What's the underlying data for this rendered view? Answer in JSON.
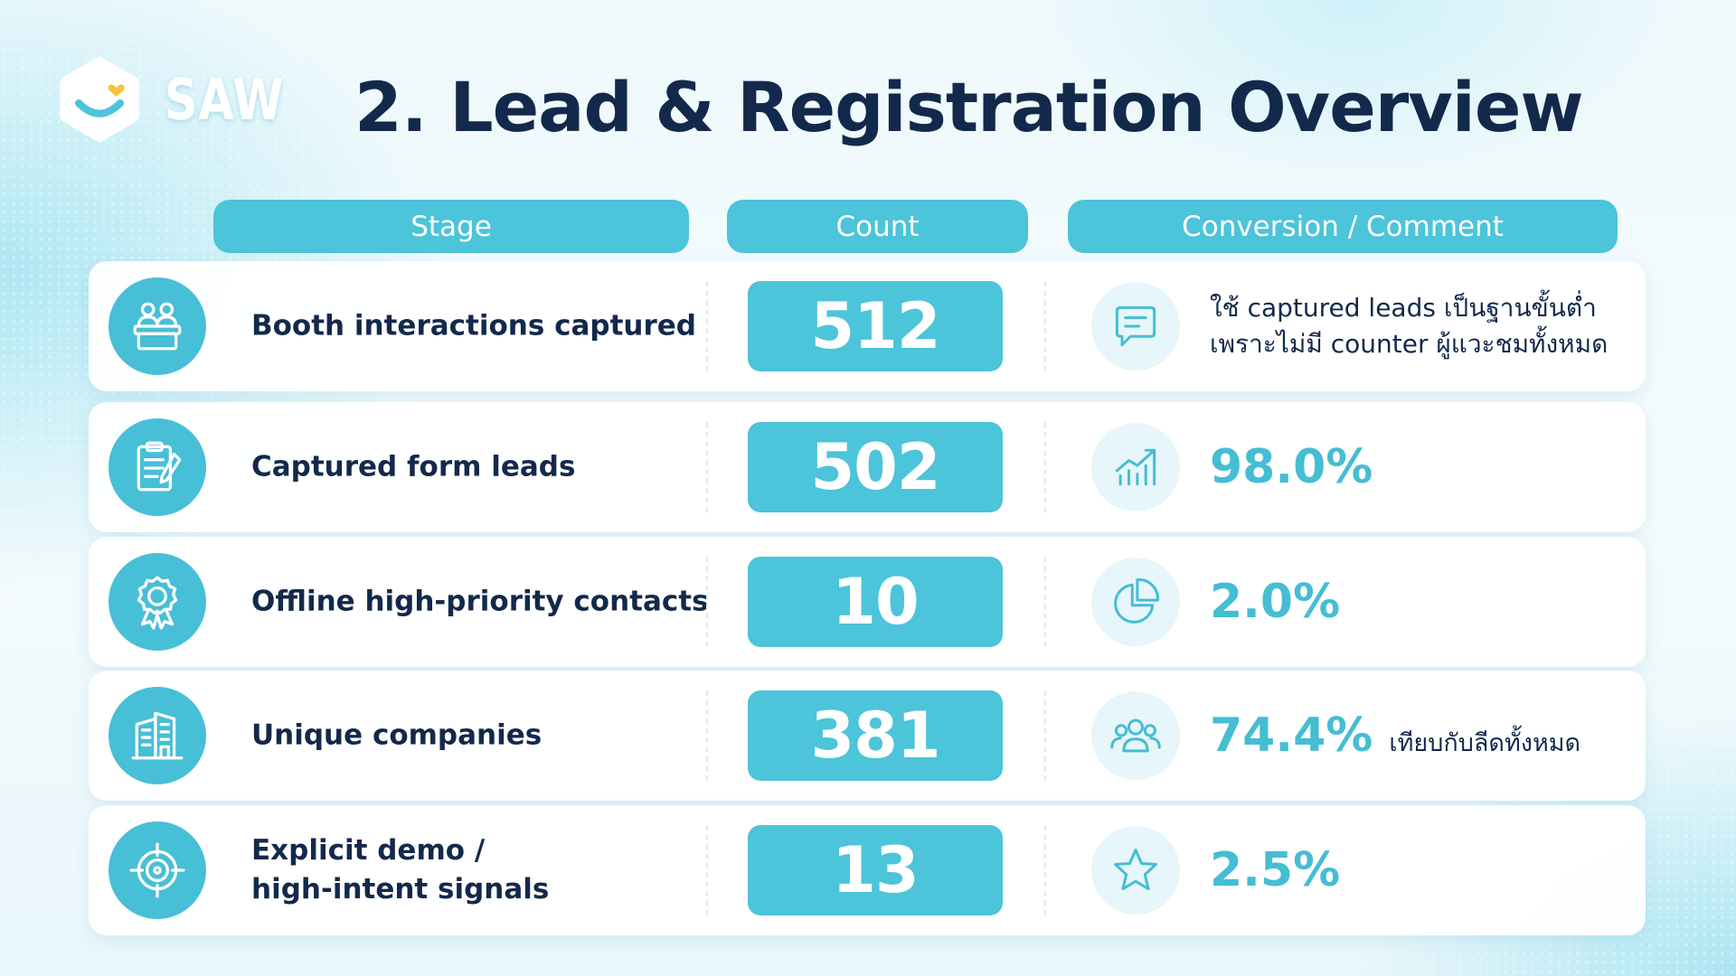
{
  "brand": {
    "name": "SAW",
    "logo_icon": "smile-heart-hexagon-icon",
    "accent_color": "#4cc4d9",
    "heart_color": "#f7c33b"
  },
  "page": {
    "title": "2. Lead & Registration Overview"
  },
  "table": {
    "headers": {
      "stage": "Stage",
      "count": "Count",
      "conversion": "Conversion / Comment"
    },
    "rows": [
      {
        "stage": "Booth interactions captured",
        "stage_icon": "people-at-booth-icon",
        "count": "512",
        "comment_icon": "chat-bubble-icon",
        "comment": "ใช้ captured leads เป็นฐานขั้นต่ำ\nเพราะไม่มี counter ผู้แวะชมทั้งหมด"
      },
      {
        "stage": "Captured form leads",
        "stage_icon": "clipboard-form-icon",
        "count": "502",
        "comment_icon": "growth-chart-icon",
        "percent": "98.0%"
      },
      {
        "stage": "Offline high-priority contacts",
        "stage_icon": "award-badge-icon",
        "count": "10",
        "comment_icon": "pie-chart-icon",
        "percent": "2.0%"
      },
      {
        "stage": "Unique companies",
        "stage_icon": "office-building-icon",
        "count": "381",
        "comment_icon": "group-users-icon",
        "percent": "74.4%",
        "note": "เทียบกับลีดทั้งหมด"
      },
      {
        "stage": "Explicit demo /\nhigh-intent signals",
        "stage_icon": "target-icon",
        "count": "13",
        "comment_icon": "star-icon",
        "percent": "2.5%"
      }
    ]
  }
}
